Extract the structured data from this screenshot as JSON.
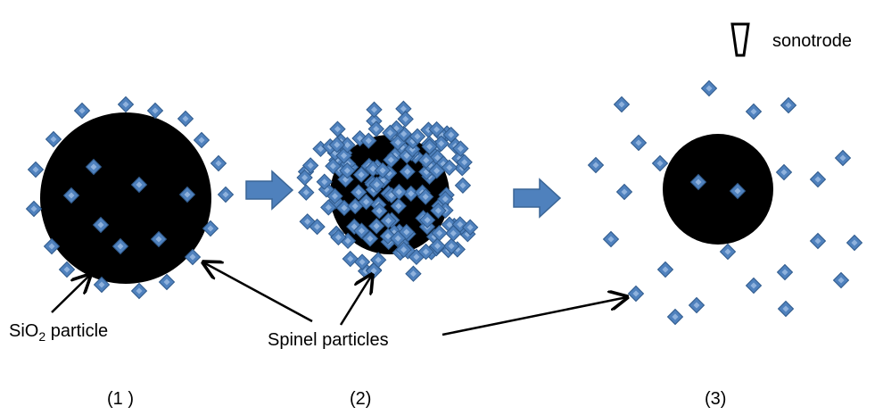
{
  "labels": {
    "sonotrode": "sonotrode",
    "sio2": {
      "main": "SiO",
      "sub": "2",
      "rest": " particle"
    },
    "spinel": "Spinel particles",
    "steps": [
      "(1 )",
      "(2)",
      "(3)"
    ]
  }
}
